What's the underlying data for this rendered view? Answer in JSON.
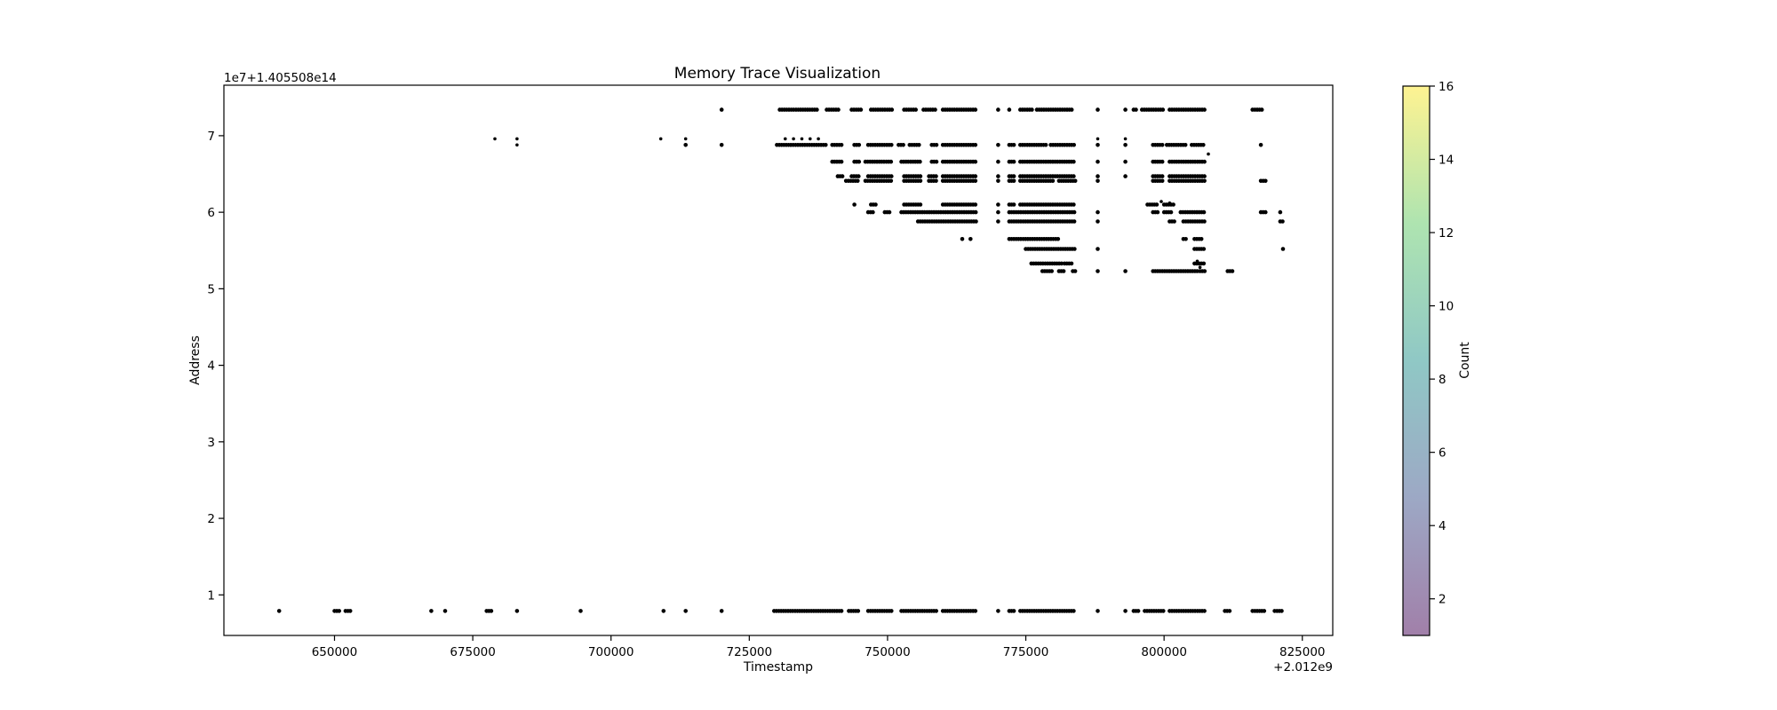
{
  "chart_data": {
    "type": "scatter",
    "title": "Memory Trace Visualization",
    "xlabel": "Timestamp",
    "ylabel": "Address",
    "x_offset_label": "+2.012e9",
    "y_offset_label": "1e7+1.405508e14",
    "x_ticks": [
      650000,
      675000,
      700000,
      725000,
      750000,
      775000,
      800000,
      825000
    ],
    "x_tick_labels": [
      "650000",
      "675000",
      "700000",
      "725000",
      "750000",
      "775000",
      "800000",
      "825000"
    ],
    "y_ticks": [
      1,
      2,
      3,
      4,
      5,
      6,
      7
    ],
    "y_tick_labels": [
      "1",
      "2",
      "3",
      "4",
      "5",
      "6",
      "7"
    ],
    "xlim": [
      630000,
      830500
    ],
    "ylim": [
      0.47,
      7.66
    ],
    "grid": false,
    "point_color": "#000000",
    "colorbar": {
      "label": "Count",
      "range": [
        1,
        16
      ],
      "ticks": [
        2,
        4,
        6,
        8,
        10,
        12,
        14,
        16
      ],
      "tick_labels": [
        "2",
        "4",
        "6",
        "8",
        "10",
        "12",
        "14",
        "16"
      ],
      "colors": [
        "#440154",
        "#3b528b",
        "#21918c",
        "#5ec962",
        "#fde725"
      ],
      "alpha": 0.5
    },
    "segments": [
      {
        "y": 7.34,
        "x": [
          [
            720000,
            720100
          ],
          [
            730500,
            737500
          ],
          [
            739000,
            741500
          ],
          [
            743500,
            745500
          ],
          [
            747000,
            751000
          ],
          [
            753000,
            755500
          ],
          [
            756500,
            759000
          ],
          [
            760000,
            766000
          ],
          [
            770000,
            770200
          ],
          [
            772000,
            772300
          ],
          [
            774000,
            776500
          ],
          [
            777000,
            783500
          ],
          [
            788000,
            788300
          ],
          [
            793000,
            793300
          ],
          [
            794500,
            795000
          ],
          [
            796000,
            800000
          ],
          [
            801000,
            807500
          ],
          [
            816000,
            818000
          ]
        ]
      },
      {
        "y": 6.88,
        "x": [
          [
            713500,
            713700
          ],
          [
            720000,
            720100
          ],
          [
            730000,
            739000
          ],
          [
            740000,
            742000
          ],
          [
            744000,
            745000
          ],
          [
            746500,
            751000
          ],
          [
            752000,
            753000
          ],
          [
            754000,
            756000
          ],
          [
            758000,
            759000
          ],
          [
            760000,
            766000
          ],
          [
            770000,
            770300
          ],
          [
            772000,
            773000
          ],
          [
            774000,
            779000
          ],
          [
            779500,
            784000
          ],
          [
            788000,
            788300
          ],
          [
            793000,
            793300
          ],
          [
            798000,
            800000
          ],
          [
            800500,
            804000
          ],
          [
            805000,
            807500
          ],
          [
            817500,
            817700
          ]
        ]
      },
      {
        "y": 6.66,
        "x": [
          [
            740000,
            742000
          ],
          [
            744000,
            745000
          ],
          [
            746000,
            751000
          ],
          [
            752500,
            756000
          ],
          [
            758000,
            759000
          ],
          [
            760000,
            766000
          ],
          [
            770000,
            770200
          ],
          [
            772000,
            773000
          ],
          [
            774000,
            784000
          ],
          [
            788000,
            788200
          ],
          [
            793000,
            793200
          ],
          [
            798000,
            800000
          ],
          [
            801000,
            807500
          ]
        ]
      },
      {
        "y": 6.47,
        "x": [
          [
            741000,
            742000
          ],
          [
            743500,
            745000
          ],
          [
            746500,
            751000
          ],
          [
            753000,
            756000
          ],
          [
            757500,
            759000
          ],
          [
            760000,
            766000
          ],
          [
            770000,
            770200
          ],
          [
            772000,
            773000
          ],
          [
            774000,
            784000
          ],
          [
            788000,
            788200
          ],
          [
            793000,
            793200
          ],
          [
            798000,
            800000
          ],
          [
            801000,
            807500
          ]
        ]
      },
      {
        "y": 6.41,
        "x": [
          [
            742500,
            745000
          ],
          [
            746000,
            751000
          ],
          [
            753000,
            756000
          ],
          [
            757500,
            759000
          ],
          [
            760000,
            766000
          ],
          [
            770000,
            770200
          ],
          [
            772000,
            773000
          ],
          [
            774000,
            780000
          ],
          [
            781000,
            784000
          ],
          [
            788000,
            788200
          ],
          [
            798000,
            800000
          ],
          [
            801000,
            807500
          ],
          [
            817500,
            818500
          ]
        ]
      },
      {
        "y": 6.1,
        "x": [
          [
            744000,
            744300
          ],
          [
            747000,
            748000
          ],
          [
            753000,
            756000
          ],
          [
            760000,
            766000
          ],
          [
            770000,
            770300
          ],
          [
            772000,
            773000
          ],
          [
            774000,
            784000
          ],
          [
            797000,
            799000
          ],
          [
            800000,
            802000
          ]
        ]
      },
      {
        "y": 6.0,
        "x": [
          [
            746500,
            747500
          ],
          [
            749500,
            750500
          ],
          [
            752500,
            766000
          ],
          [
            770000,
            770300
          ],
          [
            772000,
            784000
          ],
          [
            788000,
            788300
          ],
          [
            798000,
            799000
          ],
          [
            800000,
            801500
          ],
          [
            803000,
            807500
          ],
          [
            817500,
            818500
          ],
          [
            821000,
            821200
          ]
        ]
      },
      {
        "y": 5.88,
        "x": [
          [
            755500,
            766000
          ],
          [
            770000,
            770300
          ],
          [
            772000,
            784000
          ],
          [
            788000,
            788300
          ],
          [
            801000,
            802000
          ],
          [
            803500,
            807500
          ],
          [
            821000,
            821500
          ]
        ]
      },
      {
        "y": 5.65,
        "x": [
          [
            763500,
            763700
          ],
          [
            765000,
            765300
          ],
          [
            772000,
            781000
          ],
          [
            803500,
            804000
          ],
          [
            805500,
            807000
          ]
        ]
      },
      {
        "y": 5.52,
        "x": [
          [
            775000,
            784000
          ],
          [
            788000,
            788300
          ],
          [
            805500,
            807500
          ],
          [
            821500,
            821800
          ]
        ]
      },
      {
        "y": 5.33,
        "x": [
          [
            776000,
            781500
          ],
          [
            782000,
            783500
          ],
          [
            805500,
            807500
          ]
        ]
      },
      {
        "y": 5.23,
        "x": [
          [
            778000,
            780000
          ],
          [
            781000,
            782000
          ],
          [
            783500,
            784000
          ],
          [
            788000,
            788300
          ],
          [
            793000,
            793300
          ],
          [
            798000,
            806000
          ],
          [
            806500,
            807500
          ],
          [
            811500,
            812500
          ]
        ]
      },
      {
        "y": 0.79,
        "x": [
          [
            640000,
            640200
          ],
          [
            650000,
            651000
          ],
          [
            652000,
            653000
          ],
          [
            667500,
            667800
          ],
          [
            670000,
            670200
          ],
          [
            677500,
            678500
          ],
          [
            683000,
            683200
          ],
          [
            694500,
            694700
          ],
          [
            709500,
            709700
          ],
          [
            713500,
            713700
          ],
          [
            720000,
            720200
          ],
          [
            729500,
            742000
          ],
          [
            743000,
            745000
          ],
          [
            746500,
            751000
          ],
          [
            752500,
            759000
          ],
          [
            760000,
            766000
          ],
          [
            770000,
            770300
          ],
          [
            772000,
            773000
          ],
          [
            774000,
            784000
          ],
          [
            788000,
            788300
          ],
          [
            793000,
            793300
          ],
          [
            794500,
            795500
          ],
          [
            796500,
            800000
          ],
          [
            801000,
            807500
          ],
          [
            811000,
            812000
          ],
          [
            816000,
            818500
          ],
          [
            820000,
            821500
          ]
        ]
      }
    ],
    "extra_points": [
      {
        "x": 679000,
        "y": 6.96
      },
      {
        "x": 683000,
        "y": 6.96
      },
      {
        "x": 683000,
        "y": 6.88
      },
      {
        "x": 709000,
        "y": 6.96
      },
      {
        "x": 713500,
        "y": 6.96
      },
      {
        "x": 731500,
        "y": 6.96
      },
      {
        "x": 733000,
        "y": 6.96
      },
      {
        "x": 734500,
        "y": 6.96
      },
      {
        "x": 736000,
        "y": 6.96
      },
      {
        "x": 737500,
        "y": 6.96
      },
      {
        "x": 788000,
        "y": 6.96
      },
      {
        "x": 793000,
        "y": 6.96
      },
      {
        "x": 799500,
        "y": 6.14
      },
      {
        "x": 801000,
        "y": 6.12
      },
      {
        "x": 808000,
        "y": 6.76
      },
      {
        "x": 806500,
        "y": 5.28
      },
      {
        "x": 806000,
        "y": 5.36
      }
    ]
  }
}
